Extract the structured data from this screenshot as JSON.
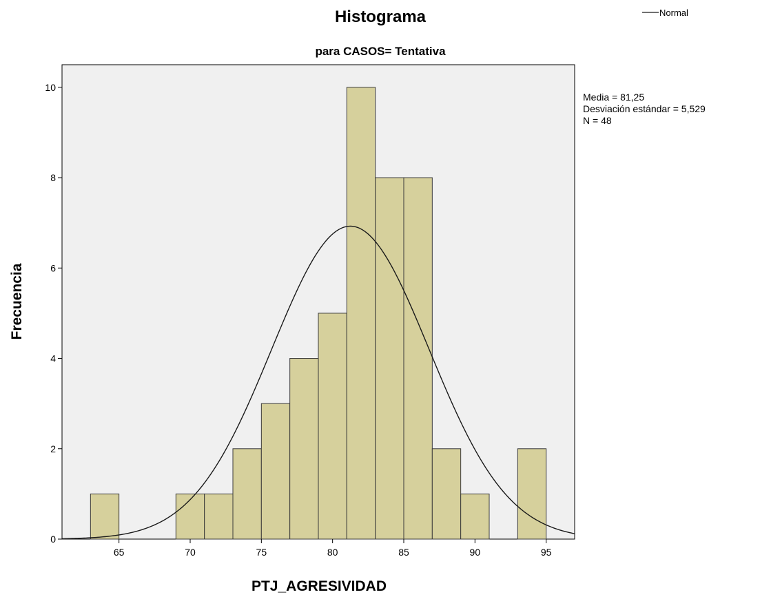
{
  "chart_data": {
    "type": "bar",
    "title": "Histograma",
    "subtitle": "para CASOS= Tentativa",
    "xlabel": "PTJ_AGRESIVIDAD",
    "ylabel": "Frecuencia",
    "xlim": [
      61,
      97
    ],
    "ylim": [
      0,
      10.5
    ],
    "x_ticks": [
      "65",
      "70",
      "75",
      "80",
      "85",
      "90",
      "95"
    ],
    "y_ticks": [
      "0",
      "2",
      "4",
      "6",
      "8",
      "10"
    ],
    "bins": [
      {
        "start": 63,
        "end": 65,
        "count": 1
      },
      {
        "start": 65,
        "end": 67,
        "count": 0
      },
      {
        "start": 67,
        "end": 69,
        "count": 0
      },
      {
        "start": 69,
        "end": 71,
        "count": 1
      },
      {
        "start": 71,
        "end": 73,
        "count": 1
      },
      {
        "start": 73,
        "end": 75,
        "count": 2
      },
      {
        "start": 75,
        "end": 77,
        "count": 3
      },
      {
        "start": 77,
        "end": 79,
        "count": 4
      },
      {
        "start": 79,
        "end": 81,
        "count": 5
      },
      {
        "start": 81,
        "end": 83,
        "count": 10
      },
      {
        "start": 83,
        "end": 85,
        "count": 8
      },
      {
        "start": 85,
        "end": 87,
        "count": 8
      },
      {
        "start": 87,
        "end": 89,
        "count": 2
      },
      {
        "start": 89,
        "end": 91,
        "count": 1
      },
      {
        "start": 91,
        "end": 93,
        "count": 0
      },
      {
        "start": 93,
        "end": 95,
        "count": 2
      }
    ],
    "normal_curve": {
      "mean": 81.25,
      "sd": 5.529,
      "n": 48,
      "bin_width": 2
    },
    "legend": {
      "label": "Normal",
      "position": "top-right"
    },
    "stats": [
      "Media = 81,25",
      "Desviación estándar = 5,529",
      "N = 48"
    ],
    "grid": false,
    "colors": {
      "bar_fill": "#d6d09c",
      "bar_stroke": "#3a3a3a",
      "plot_background": "#f0f0f0",
      "curve": "#1a1a1a"
    }
  }
}
